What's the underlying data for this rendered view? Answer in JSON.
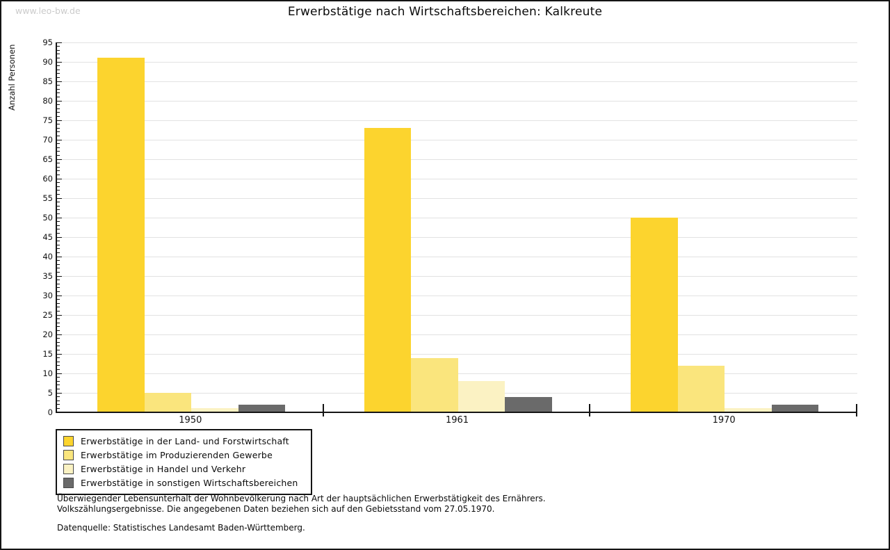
{
  "watermark": "www.leo-bw.de",
  "title": "Erwerbstätige nach Wirtschaftsbereichen: Kalkreute",
  "chart_data": {
    "type": "bar",
    "title": "Erwerbstätige nach Wirtschaftsbereichen: Kalkreute",
    "xlabel": "",
    "ylabel": "Anzahl Personen",
    "categories": [
      "1950",
      "1961",
      "1970"
    ],
    "series": [
      {
        "name": "Erwerbstätige in der Land- und Forstwirtschaft",
        "color": "#FCD42E",
        "values": [
          91,
          73,
          50
        ]
      },
      {
        "name": "Erwerbstätige im Produzierenden Gewerbe",
        "color": "#FAE57D",
        "values": [
          5,
          14,
          12
        ]
      },
      {
        "name": "Erwerbstätige in Handel und Verkehr",
        "color": "#FBF2C3",
        "values": [
          1,
          8,
          1
        ]
      },
      {
        "name": "Erwerbstätige in sonstigen Wirtschaftsbereichen",
        "color": "#6A6A6A",
        "values": [
          2,
          4,
          2
        ]
      }
    ],
    "ylim": [
      0,
      95
    ],
    "ytick_step": 5,
    "minor_tick_step": 1,
    "grid": true,
    "gridline_color": "#e2e2e2",
    "legend_position": "bottom-left"
  },
  "footnotes": [
    "Überwiegender Lebensunterhalt der Wohnbevölkerung nach Art der hauptsächlichen Erwerbstätigkeit des Ernährers.",
    "Volkszählungsergebnisse. Die angegebenen Daten beziehen sich auf den Gebietsstand vom 27.05.1970."
  ],
  "source": "Datenquelle: Statistisches Landesamt Baden-Württemberg."
}
